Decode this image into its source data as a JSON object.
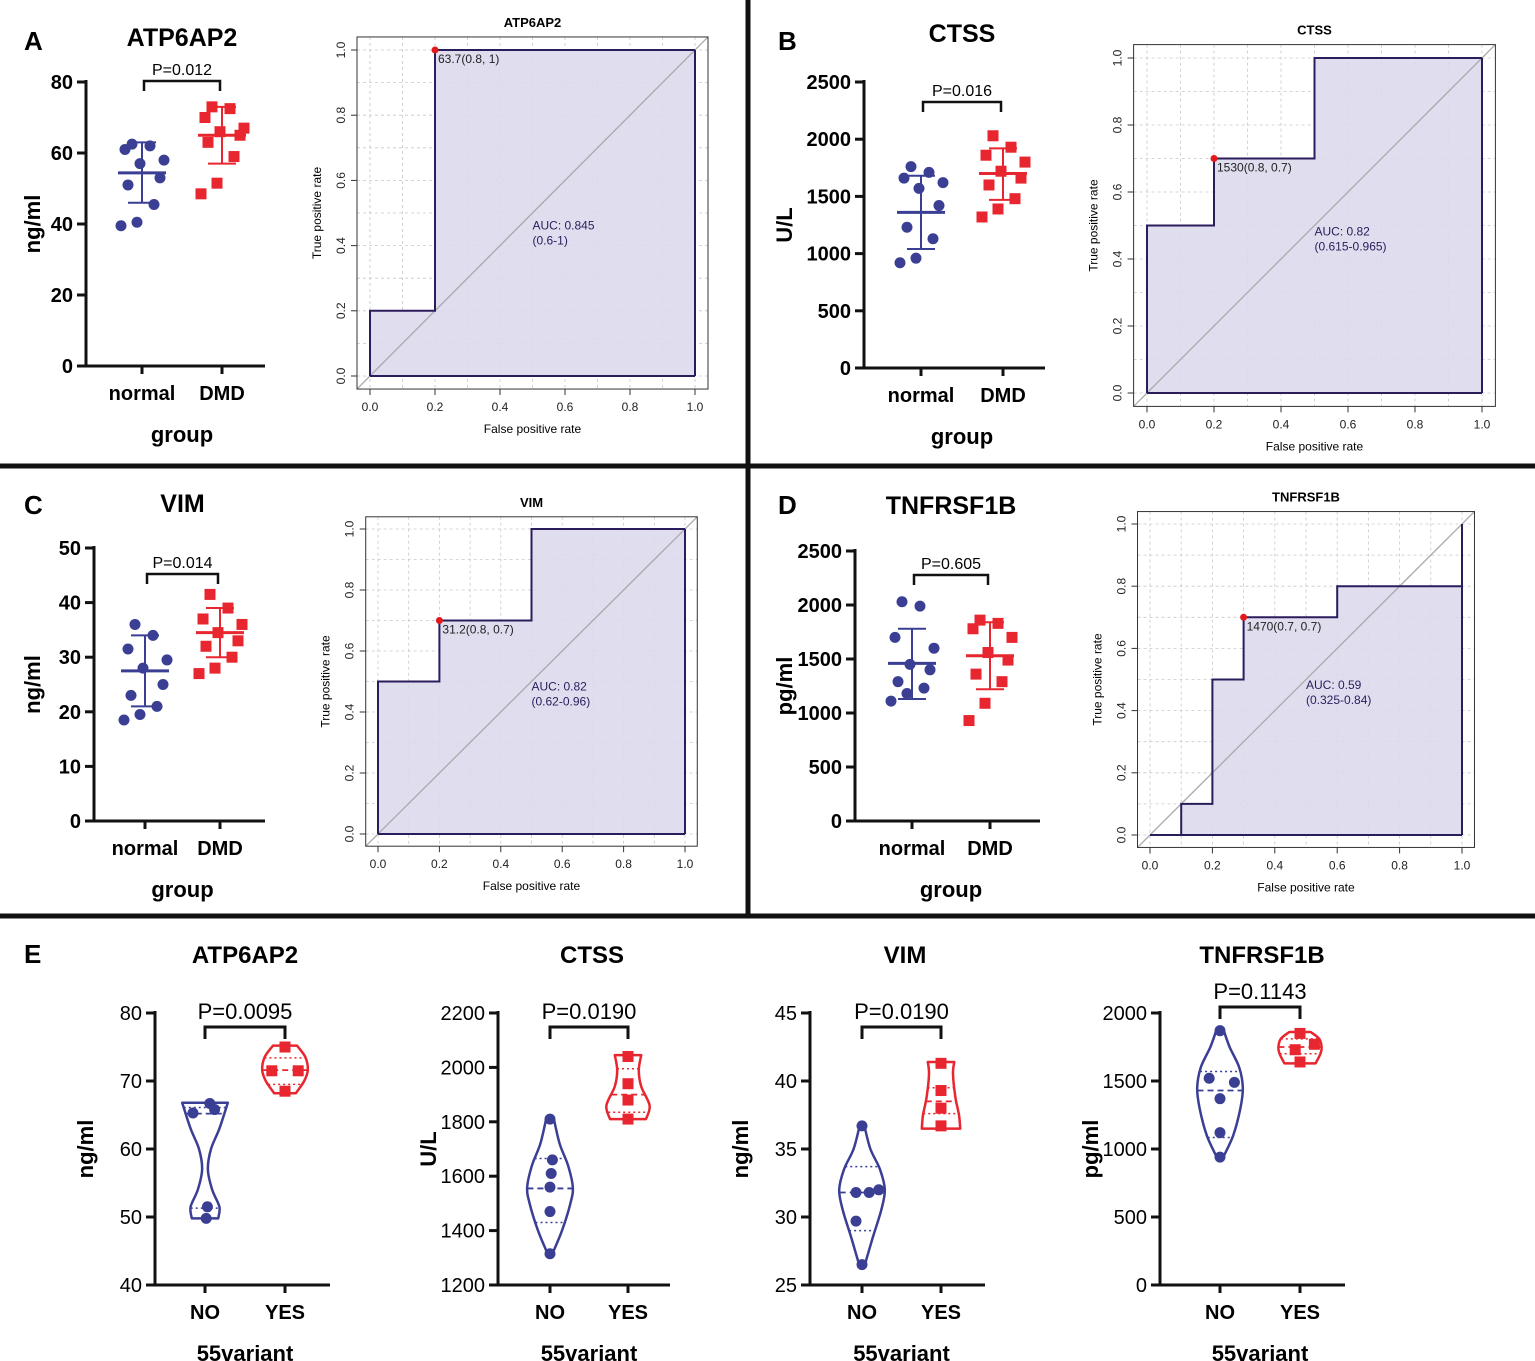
{
  "colors": {
    "normal": "#3a3f94",
    "dmd": "#e8262f",
    "roc_line": "#2b1d5c",
    "roc_fill": "#dcd9ec",
    "diagonal": "#a9a9a9",
    "grid": "#c8c8c8",
    "cutoff_point": "#e31a1c",
    "divider": "#111111"
  },
  "common": {
    "group_xlabel": "group",
    "group_normal": "normal",
    "group_dmd": "DMD",
    "roc_xlabel": "False positive rate",
    "roc_ylabel": "True positive rate",
    "variant_xlabel": "55variant",
    "variant_no": "NO",
    "variant_yes": "YES"
  },
  "chart_data": [
    {
      "id": "A-dot",
      "panel_letter": "A",
      "type": "scatter",
      "title": "ATP6AP2",
      "ylabel": "ng/ml",
      "xlabel": "group",
      "categories": [
        "normal",
        "DMD"
      ],
      "ylim": [
        0,
        80
      ],
      "yticks": [
        "0",
        "20",
        "40",
        "60",
        "80"
      ],
      "p_label": "P=0.012",
      "series": [
        {
          "name": "normal",
          "values": [
            39.5,
            40.5,
            45.5,
            51,
            53,
            57,
            58,
            61,
            62,
            62.5
          ],
          "mean": 54.4,
          "sd": [
            46,
            63
          ]
        },
        {
          "name": "DMD",
          "values": [
            48.5,
            51.5,
            59,
            63,
            65,
            66,
            67,
            70,
            72.5,
            73
          ],
          "mean": 65,
          "sd": [
            57,
            73
          ]
        }
      ]
    },
    {
      "id": "A-roc",
      "type": "line",
      "title": "ATP6AP2",
      "xlabel": "False positive rate",
      "ylabel": "True positive rate",
      "xlim": [
        0,
        1
      ],
      "ylim": [
        0,
        1
      ],
      "ticks": [
        "0.0",
        "0.2",
        "0.4",
        "0.6",
        "0.8",
        "1.0"
      ],
      "roc": [
        [
          0,
          0
        ],
        [
          0,
          0.2
        ],
        [
          0.2,
          0.2
        ],
        [
          0.2,
          1
        ],
        [
          1,
          1
        ]
      ],
      "auc_label": "AUC: 0.845",
      "ci_label": "(0.6-1)",
      "auc_pos": [
        0.5,
        0.45
      ],
      "cutoff_point": [
        0.2,
        1
      ],
      "cutoff_label": "63.7(0.8, 1)"
    },
    {
      "id": "B-dot",
      "panel_letter": "B",
      "type": "scatter",
      "title": "CTSS",
      "ylabel": "U/L",
      "xlabel": "group",
      "categories": [
        "normal",
        "DMD"
      ],
      "ylim": [
        0,
        2500
      ],
      "yticks": [
        "0",
        "500",
        "1000",
        "1500",
        "2000",
        "2500"
      ],
      "p_label": "P=0.016",
      "series": [
        {
          "name": "normal",
          "values": [
            920,
            960,
            1130,
            1230,
            1420,
            1570,
            1620,
            1660,
            1710,
            1760
          ],
          "mean": 1360,
          "sd": [
            1040,
            1680
          ]
        },
        {
          "name": "DMD",
          "values": [
            1320,
            1390,
            1480,
            1600,
            1660,
            1720,
            1800,
            1860,
            1930,
            2030
          ],
          "mean": 1700,
          "sd": [
            1470,
            1920
          ]
        }
      ]
    },
    {
      "id": "B-roc",
      "type": "line",
      "title": "CTSS",
      "xlabel": "False positive rate",
      "ylabel": "True positive rate",
      "xlim": [
        0,
        1
      ],
      "ylim": [
        0,
        1
      ],
      "ticks": [
        "0.0",
        "0.2",
        "0.4",
        "0.6",
        "0.8",
        "1.0"
      ],
      "roc": [
        [
          0,
          0
        ],
        [
          0,
          0.5
        ],
        [
          0.2,
          0.5
        ],
        [
          0.2,
          0.7
        ],
        [
          0.5,
          0.7
        ],
        [
          0.5,
          1
        ],
        [
          1,
          1
        ]
      ],
      "auc_label": "AUC: 0.82",
      "ci_label": "(0.615-0.965)",
      "auc_pos": [
        0.5,
        0.47
      ],
      "cutoff_point": [
        0.2,
        0.7
      ],
      "cutoff_label": "1530(0.8, 0.7)"
    },
    {
      "id": "C-dot",
      "panel_letter": "C",
      "type": "scatter",
      "title": "VIM",
      "ylabel": "ng/ml",
      "xlabel": "group",
      "categories": [
        "normal",
        "DMD"
      ],
      "ylim": [
        0,
        50
      ],
      "yticks": [
        "0",
        "10",
        "20",
        "30",
        "40",
        "50"
      ],
      "p_label": "P=0.014",
      "series": [
        {
          "name": "normal",
          "values": [
            18.5,
            19.5,
            21,
            23,
            25,
            28,
            29.5,
            31.5,
            34,
            36
          ],
          "mean": 27.5,
          "sd": [
            21,
            34
          ]
        },
        {
          "name": "DMD",
          "values": [
            27,
            28,
            30,
            32,
            33,
            34.5,
            36,
            37,
            39,
            41.5
          ],
          "mean": 34.5,
          "sd": [
            30,
            39
          ]
        }
      ]
    },
    {
      "id": "C-roc",
      "type": "line",
      "title": "VIM",
      "xlabel": "False positive rate",
      "ylabel": "True positive rate",
      "xlim": [
        0,
        1
      ],
      "ylim": [
        0,
        1
      ],
      "ticks": [
        "0.0",
        "0.2",
        "0.4",
        "0.6",
        "0.8",
        "1.0"
      ],
      "roc": [
        [
          0,
          0
        ],
        [
          0,
          0.5
        ],
        [
          0.2,
          0.5
        ],
        [
          0.2,
          0.7
        ],
        [
          0.5,
          0.7
        ],
        [
          0.5,
          1
        ],
        [
          1,
          1
        ]
      ],
      "auc_label": "AUC: 0.82",
      "ci_label": "(0.62-0.96)",
      "auc_pos": [
        0.5,
        0.47
      ],
      "cutoff_point": [
        0.2,
        0.7
      ],
      "cutoff_label": "31.2(0.8, 0.7)"
    },
    {
      "id": "D-dot",
      "panel_letter": "D",
      "type": "scatter",
      "title": "TNFRSF1B",
      "ylabel": "pg/ml",
      "xlabel": "group",
      "categories": [
        "normal",
        "DMD"
      ],
      "ylim": [
        0,
        2500
      ],
      "yticks": [
        "0",
        "500",
        "1000",
        "1500",
        "2000",
        "2500"
      ],
      "p_label": "P=0.605",
      "series": [
        {
          "name": "normal",
          "values": [
            1110,
            1180,
            1230,
            1290,
            1400,
            1450,
            1600,
            1700,
            1990,
            2030
          ],
          "mean": 1460,
          "sd": [
            1130,
            1780
          ]
        },
        {
          "name": "DMD",
          "values": [
            930,
            1090,
            1290,
            1360,
            1490,
            1560,
            1700,
            1780,
            1830,
            1860
          ],
          "mean": 1530,
          "sd": [
            1220,
            1840
          ]
        }
      ]
    },
    {
      "id": "D-roc",
      "type": "line",
      "title": "TNFRSF1B",
      "xlabel": "False positive rate",
      "ylabel": "True positive rate",
      "xlim": [
        0,
        1
      ],
      "ylim": [
        0,
        1
      ],
      "ticks": [
        "0.0",
        "0.2",
        "0.4",
        "0.6",
        "0.8",
        "1.0"
      ],
      "roc": [
        [
          0,
          0
        ],
        [
          0.1,
          0
        ],
        [
          0.1,
          0.1
        ],
        [
          0.2,
          0.1
        ],
        [
          0.2,
          0.5
        ],
        [
          0.3,
          0.5
        ],
        [
          0.3,
          0.7
        ],
        [
          0.6,
          0.7
        ],
        [
          0.6,
          0.8
        ],
        [
          1,
          0.8
        ],
        [
          1,
          1
        ]
      ],
      "auc_label": "AUC: 0.59",
      "ci_label": "(0.325-0.84)",
      "auc_pos": [
        0.5,
        0.47
      ],
      "cutoff_point": [
        0.3,
        0.7
      ],
      "cutoff_label": "1470(0.7, 0.7)"
    },
    {
      "id": "E1",
      "panel_letter": "E",
      "type": "violin",
      "title": "ATP6AP2",
      "ylabel": "ng/ml",
      "xlabel": "55variant",
      "categories": [
        "NO",
        "YES"
      ],
      "ylim": [
        40,
        80
      ],
      "yticks": [
        "40",
        "50",
        "60",
        "70",
        "80"
      ],
      "p_label": "P=0.0095",
      "series": [
        {
          "name": "NO",
          "values": [
            49.8,
            51.5,
            65.3,
            65.8,
            66.7
          ],
          "min": 49.8,
          "max": 66.8,
          "median": 65.2,
          "q1": 51.3,
          "q3": 66.1,
          "shape": [
            [
              49.8,
              0.55
            ],
            [
              51.5,
              0.6
            ],
            [
              54,
              0.3
            ],
            [
              57,
              0.12
            ],
            [
              60,
              0.25
            ],
            [
              63,
              0.6
            ],
            [
              66.8,
              0.95
            ]
          ],
          "dot_offsets": [
            0.05,
            0.1,
            -0.5,
            0.4,
            0.2
          ]
        },
        {
          "name": "YES",
          "values": [
            68.5,
            71.5,
            71.5,
            75
          ],
          "min": 68.2,
          "max": 75.2,
          "median": 71.6,
          "q1": 69.5,
          "q3": 73.4,
          "shape": [
            [
              68.2,
              0.45
            ],
            [
              70,
              0.8
            ],
            [
              71.6,
              0.95
            ],
            [
              73.5,
              0.85
            ],
            [
              75.2,
              0.5
            ]
          ],
          "dot_offsets": [
            0,
            -0.55,
            0.55,
            0
          ]
        }
      ]
    },
    {
      "id": "E2",
      "type": "violin",
      "title": "CTSS",
      "ylabel": "U/L",
      "xlabel": "55variant",
      "categories": [
        "NO",
        "YES"
      ],
      "ylim": [
        1200,
        2200
      ],
      "yticks": [
        "1200",
        "1400",
        "1600",
        "1800",
        "2000",
        "2200"
      ],
      "p_label": "P=0.0190",
      "series": [
        {
          "name": "NO",
          "values": [
            1315,
            1470,
            1560,
            1610,
            1660,
            1810
          ],
          "min": 1315,
          "max": 1815,
          "median": 1555,
          "q1": 1430,
          "q3": 1665,
          "shape": [
            [
              1315,
              0.1
            ],
            [
              1400,
              0.5
            ],
            [
              1500,
              0.85
            ],
            [
              1560,
              0.95
            ],
            [
              1640,
              0.75
            ],
            [
              1720,
              0.4
            ],
            [
              1815,
              0.15
            ]
          ],
          "dot_offsets": [
            0,
            0,
            0,
            0.05,
            0.1,
            0
          ]
        },
        {
          "name": "YES",
          "values": [
            1810,
            1880,
            1940,
            2040
          ],
          "min": 1810,
          "max": 2045,
          "median": 1900,
          "q1": 1835,
          "q3": 1995,
          "shape": [
            [
              1810,
              0.75
            ],
            [
              1860,
              0.9
            ],
            [
              1930,
              0.55
            ],
            [
              1990,
              0.45
            ],
            [
              2045,
              0.55
            ]
          ],
          "dot_offsets": [
            0,
            0,
            0,
            0
          ]
        }
      ]
    },
    {
      "id": "E3",
      "type": "violin",
      "title": "VIM",
      "ylabel": "ng/ml",
      "xlabel": "55variant",
      "categories": [
        "NO",
        "YES"
      ],
      "ylim": [
        25,
        45
      ],
      "yticks": [
        "25",
        "30",
        "35",
        "40",
        "45"
      ],
      "p_label": "P=0.0190",
      "series": [
        {
          "name": "NO",
          "values": [
            26.5,
            29.7,
            31.8,
            31.8,
            32,
            36.7
          ],
          "min": 26.5,
          "max": 36.7,
          "median": 31.8,
          "q1": 29,
          "q3": 33.7,
          "shape": [
            [
              26.5,
              0.12
            ],
            [
              28.5,
              0.45
            ],
            [
              30.5,
              0.8
            ],
            [
              32,
              0.95
            ],
            [
              33.5,
              0.75
            ],
            [
              35,
              0.35
            ],
            [
              36.7,
              0.1
            ]
          ],
          "dot_offsets": [
            0,
            -0.25,
            -0.25,
            0.3,
            0.7,
            0
          ]
        },
        {
          "name": "YES",
          "values": [
            36.7,
            38,
            39.3,
            41.3
          ],
          "min": 36.5,
          "max": 41.4,
          "median": 38.5,
          "q1": 37.6,
          "q3": 39.5,
          "shape": [
            [
              36.5,
              0.8
            ],
            [
              37.5,
              0.75
            ],
            [
              38.8,
              0.6
            ],
            [
              40.5,
              0.5
            ],
            [
              41.4,
              0.55
            ]
          ],
          "dot_offsets": [
            0,
            0,
            0,
            0
          ]
        }
      ]
    },
    {
      "id": "E4",
      "type": "violin",
      "title": "TNFRSF1B",
      "ylabel": "pg/ml",
      "xlabel": "55variant",
      "categories": [
        "NO",
        "YES"
      ],
      "ylim": [
        0,
        2000
      ],
      "yticks": [
        "0",
        "500",
        "1000",
        "1500",
        "2000"
      ],
      "p_label": "P=0.1143",
      "series": [
        {
          "name": "NO",
          "values": [
            940,
            1120,
            1370,
            1490,
            1520,
            1870
          ],
          "min": 935,
          "max": 1875,
          "median": 1430,
          "q1": 1085,
          "q3": 1570,
          "shape": [
            [
              935,
              0.12
            ],
            [
              1100,
              0.55
            ],
            [
              1300,
              0.85
            ],
            [
              1450,
              0.95
            ],
            [
              1600,
              0.8
            ],
            [
              1750,
              0.4
            ],
            [
              1875,
              0.15
            ]
          ],
          "dot_offsets": [
            0,
            0,
            0,
            0.6,
            -0.45,
            0
          ]
        },
        {
          "name": "YES",
          "values": [
            1640,
            1730,
            1770,
            1850
          ],
          "min": 1630,
          "max": 1860,
          "median": 1750,
          "q1": 1700,
          "q3": 1810,
          "shape": [
            [
              1630,
              0.65
            ],
            [
              1700,
              0.85
            ],
            [
              1750,
              0.9
            ],
            [
              1810,
              0.8
            ],
            [
              1860,
              0.45
            ]
          ],
          "dot_offsets": [
            0,
            -0.2,
            0.6,
            0
          ]
        }
      ]
    }
  ]
}
